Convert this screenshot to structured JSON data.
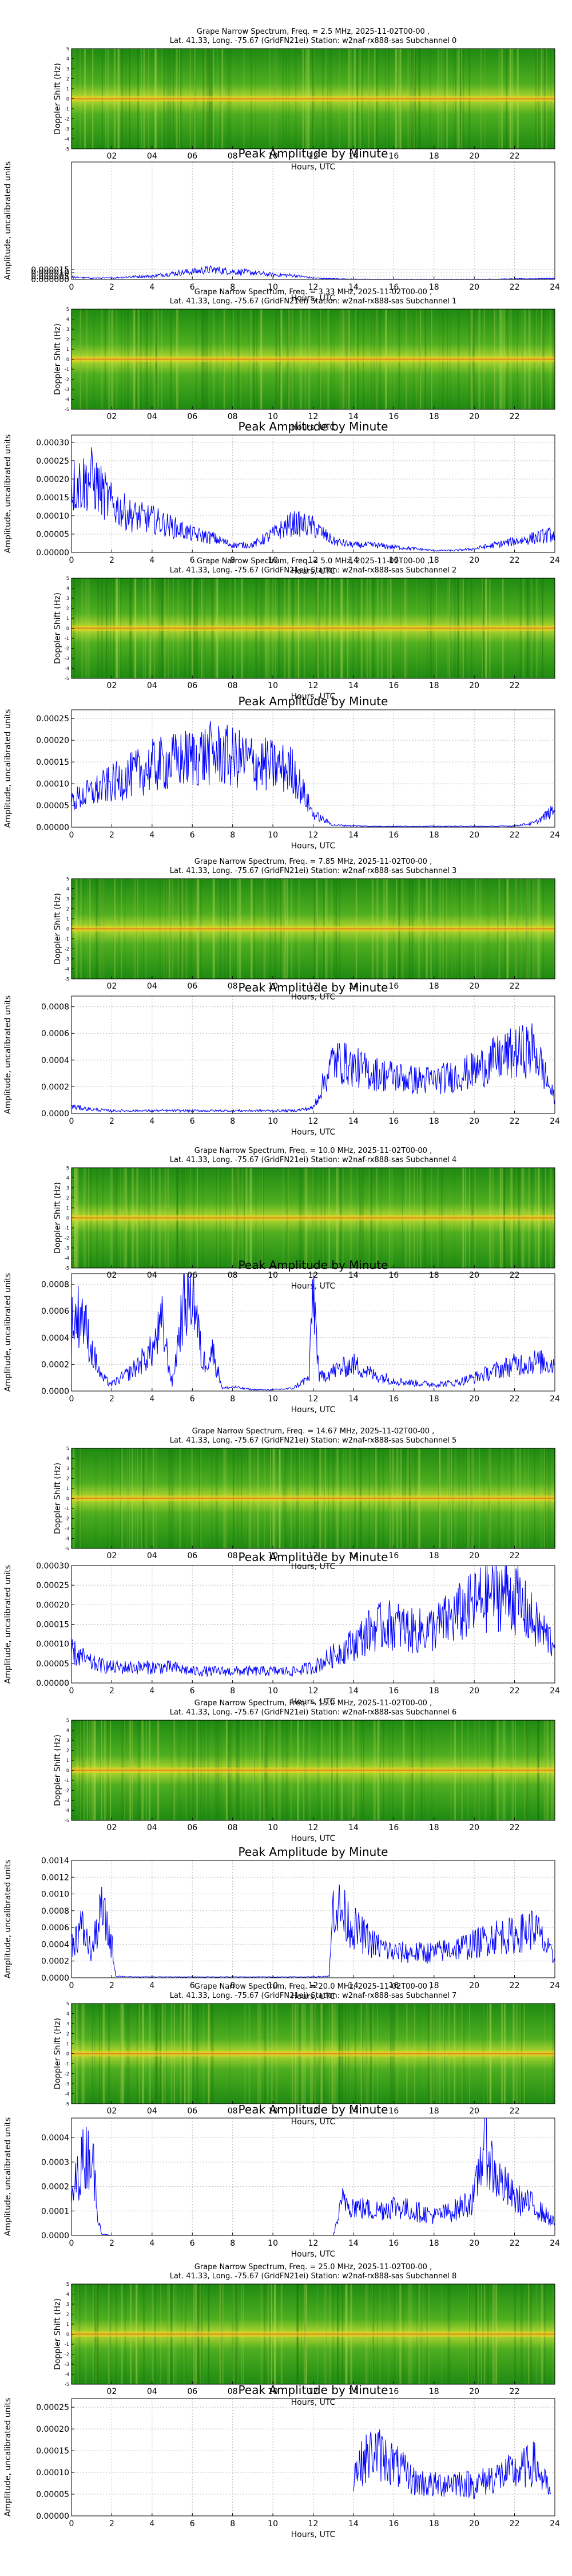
{
  "figure": {
    "x_ticks": [
      "02",
      "04",
      "06",
      "08",
      "10",
      "12",
      "14",
      "16",
      "18",
      "20",
      "22"
    ],
    "amp_x_ticks": [
      "0",
      "2",
      "4",
      "6",
      "8",
      "10",
      "12",
      "14",
      "16",
      "18",
      "20",
      "22",
      "24"
    ],
    "xlabel": "Hours, UTC",
    "spec_ylabel": "Doppler Shift (Hz)",
    "spec_yticks": [
      "-5",
      "-4",
      "-3",
      "-2",
      "-1",
      "0",
      "1",
      "2",
      "3",
      "4",
      "5"
    ],
    "amp_title": "Peak Amplitude by Minute",
    "amp_ylabel": "Amplitude, uncalibrated units"
  },
  "chart_data": [
    {
      "type": "heatmap",
      "subchannel": 0,
      "title_line1": "Grape Narrow Spectrum, Freq. = 2.5 MHz, 2025-11-02T00-00 ,",
      "title_line2": "Lat.  41.33, Long. -75.67 (GridFN21ei) Station: w2naf-rx888-sas Subchannel 0",
      "xlabel": "Hours, UTC",
      "ylabel": "Doppler Shift (Hz)",
      "xlim": [
        0,
        24
      ],
      "ylim": [
        -5,
        5
      ],
      "colormap": "green-yellow-red"
    },
    {
      "type": "line",
      "subchannel": 0,
      "title": "Peak Amplitude by Minute",
      "xlabel": "Hours, UTC",
      "ylabel": "Amplitude, uncalibrated units",
      "xlim": [
        0,
        24
      ],
      "ylim": [
        0,
        0.00018
      ],
      "yticks": [
        "0.000000",
        "0.000005",
        "0.000010",
        "0.000015"
      ],
      "ytick_values": [
        0,
        5e-06,
        1e-05,
        1.5e-05
      ],
      "x": [
        0,
        1,
        2,
        3,
        4,
        5,
        6,
        7,
        8,
        9,
        10,
        11,
        12,
        13,
        14,
        15,
        16,
        17,
        18,
        19,
        20,
        21,
        22,
        23,
        24
      ],
      "values": [
        3e-06,
        2e-06,
        2e-06,
        4e-06,
        5e-06,
        9e-06,
        1.2e-05,
        1.5e-05,
        1.2e-05,
        1e-05,
        7e-06,
        6e-06,
        2e-06,
        1e-06,
        5e-07,
        4e-07,
        4e-07,
        4e-07,
        4e-07,
        4e-07,
        4e-07,
        5e-07,
        8e-07,
        1e-06,
        1.5e-06
      ]
    },
    {
      "type": "heatmap",
      "subchannel": 1,
      "title_line1": "Grape Narrow Spectrum, Freq. = 3.33 MHz, 2025-11-02T00-00 ,",
      "title_line2": "Lat.  41.33, Long. -75.67 (GridFN21ei) Station: w2naf-rx888-sas Subchannel 1",
      "xlabel": "Hours, UTC",
      "ylabel": "Doppler Shift (Hz)",
      "xlim": [
        0,
        24
      ],
      "ylim": [
        -5,
        5
      ],
      "colormap": "green-yellow-red"
    },
    {
      "type": "line",
      "subchannel": 1,
      "title": "Peak Amplitude by Minute",
      "xlabel": "Hours, UTC",
      "ylabel": "Amplitude, uncalibrated units",
      "xlim": [
        0,
        24
      ],
      "ylim": [
        0,
        0.00032
      ],
      "yticks": [
        "0.00000",
        "0.00005",
        "0.00010",
        "0.00015",
        "0.00020",
        "0.00025",
        "0.00030"
      ],
      "ytick_values": [
        0,
        5e-05,
        0.0001,
        0.00015,
        0.0002,
        0.00025,
        0.0003
      ],
      "x": [
        0,
        1,
        2,
        3,
        4,
        5,
        6,
        7,
        8,
        9,
        10,
        11,
        12,
        13,
        14,
        15,
        16,
        17,
        18,
        19,
        20,
        21,
        22,
        23,
        24
      ],
      "values": [
        0.00018,
        0.0002,
        0.00013,
        0.0001,
        9e-05,
        7e-05,
        5e-05,
        4e-05,
        2e-05,
        2e-05,
        5e-05,
        8e-05,
        7e-05,
        3e-05,
        2e-05,
        2e-05,
        1.5e-05,
        1e-05,
        5e-06,
        5e-06,
        1e-05,
        2e-05,
        3e-05,
        4e-05,
        5e-05
      ]
    },
    {
      "type": "heatmap",
      "subchannel": 2,
      "title_line1": "Grape Narrow Spectrum, Freq. = 5.0 MHz, 2025-11-02T00-00 ,",
      "title_line2": "Lat.  41.33, Long. -75.67 (GridFN21ei) Station: w2naf-rx888-sas Subchannel 2",
      "xlabel": "Hours, UTC",
      "ylabel": "Doppler Shift (Hz)",
      "xlim": [
        0,
        24
      ],
      "ylim": [
        -5,
        5
      ],
      "colormap": "green-yellow-red"
    },
    {
      "type": "line",
      "subchannel": 2,
      "title": "Peak Amplitude by Minute",
      "xlabel": "Hours, UTC",
      "ylabel": "Amplitude, uncalibrated units",
      "xlim": [
        0,
        24
      ],
      "ylim": [
        0,
        0.00027
      ],
      "yticks": [
        "0.00000",
        "0.00005",
        "0.00010",
        "0.00015",
        "0.00020",
        "0.00025"
      ],
      "ytick_values": [
        0,
        5e-05,
        0.0001,
        0.00015,
        0.0002,
        0.00025
      ],
      "x": [
        0,
        1,
        2,
        3,
        4,
        5,
        6,
        7,
        8,
        9,
        10,
        11,
        12,
        13,
        14,
        15,
        16,
        17,
        18,
        19,
        20,
        21,
        22,
        23,
        24
      ],
      "values": [
        6e-05,
        8e-05,
        0.0001,
        0.00012,
        0.00014,
        0.00015,
        0.00016,
        0.00017,
        0.00016,
        0.00015,
        0.00014,
        0.00013,
        3e-05,
        5e-06,
        3e-06,
        2e-06,
        2e-06,
        2e-06,
        2e-06,
        2e-06,
        2e-06,
        2e-06,
        3e-06,
        1e-05,
        4e-05
      ]
    },
    {
      "type": "heatmap",
      "subchannel": 3,
      "title_line1": "Grape Narrow Spectrum, Freq. = 7.85 MHz, 2025-11-02T00-00 ,",
      "title_line2": "Lat.  41.33, Long. -75.67 (GridFN21ei) Station: w2naf-rx888-sas Subchannel 3",
      "xlabel": "Hours, UTC",
      "ylabel": "Doppler Shift (Hz)",
      "xlim": [
        0,
        24
      ],
      "ylim": [
        -5,
        5
      ],
      "colormap": "green-yellow-red"
    },
    {
      "type": "line",
      "subchannel": 3,
      "title": "Peak Amplitude by Minute",
      "xlabel": "Hours, UTC",
      "ylabel": "Amplitude, uncalibrated units",
      "xlim": [
        0,
        24
      ],
      "ylim": [
        0,
        0.00088
      ],
      "yticks": [
        "0.0000",
        "0.0002",
        "0.0004",
        "0.0006",
        "0.0008"
      ],
      "ytick_values": [
        0,
        0.0002,
        0.0004,
        0.0006,
        0.0008
      ],
      "x": [
        0,
        1,
        2,
        3,
        4,
        5,
        6,
        7,
        8,
        9,
        10,
        11,
        12,
        13,
        14,
        15,
        16,
        17,
        18,
        19,
        20,
        21,
        22,
        23,
        24
      ],
      "values": [
        5e-05,
        3e-05,
        2e-05,
        2e-05,
        2e-05,
        2e-05,
        2e-05,
        2e-05,
        2e-05,
        2e-05,
        2e-05,
        2e-05,
        4e-05,
        0.0004,
        0.00035,
        0.0003,
        0.00028,
        0.00025,
        0.00025,
        0.00028,
        0.00032,
        0.0004,
        0.00045,
        0.00048,
        0.0001
      ]
    },
    {
      "type": "heatmap",
      "subchannel": 4,
      "title_line1": "Grape Narrow Spectrum, Freq. = 10.0 MHz, 2025-11-02T00-00 ,",
      "title_line2": "Lat.  41.33, Long. -75.67 (GridFN21ei) Station: w2naf-rx888-sas Subchannel 4",
      "xlabel": "Hours, UTC",
      "ylabel": "Doppler Shift (Hz)",
      "xlim": [
        0,
        24
      ],
      "ylim": [
        -5,
        5
      ],
      "colormap": "green-yellow-red"
    },
    {
      "type": "line",
      "subchannel": 4,
      "title": "Peak Amplitude by Minute",
      "xlabel": "Hours, UTC",
      "ylabel": "Amplitude, uncalibrated units",
      "xlim": [
        0,
        24
      ],
      "ylim": [
        0,
        0.00088
      ],
      "yticks": [
        "0.0000",
        "0.0002",
        "0.0004",
        "0.0006",
        "0.0008"
      ],
      "ytick_values": [
        0,
        0.0002,
        0.0004,
        0.0006,
        0.0008
      ],
      "x": [
        0,
        0.5,
        1,
        1.5,
        2,
        3,
        4,
        4.5,
        5,
        5.5,
        6,
        6.5,
        7,
        7.5,
        8,
        9,
        10,
        11,
        11.8,
        12,
        12.3,
        13,
        14,
        15,
        16,
        17,
        18,
        19,
        20,
        21,
        22,
        23,
        24
      ],
      "values": [
        0.0005,
        0.0006,
        0.0003,
        0.0001,
        5e-05,
        0.00015,
        0.0003,
        0.0005,
        5e-05,
        0.0006,
        0.0008,
        0.0002,
        0.0003,
        2e-05,
        3e-05,
        1e-05,
        1e-05,
        2e-05,
        0.0001,
        0.0008,
        0.0001,
        0.00015,
        0.0002,
        0.00012,
        8e-05,
        6e-05,
        5e-05,
        6e-05,
        0.0001,
        0.00015,
        0.0002,
        0.00022,
        0.0002
      ]
    },
    {
      "type": "heatmap",
      "subchannel": 5,
      "title_line1": "Grape Narrow Spectrum, Freq. = 14.67 MHz, 2025-11-02T00-00 ,",
      "title_line2": "Lat.  41.33, Long. -75.67 (GridFN21ei) Station: w2naf-rx888-sas Subchannel 5",
      "xlabel": "Hours, UTC",
      "ylabel": "Doppler Shift (Hz)",
      "xlim": [
        0,
        24
      ],
      "ylim": [
        -5,
        5
      ],
      "colormap": "green-yellow-red"
    },
    {
      "type": "line",
      "subchannel": 5,
      "title": "Peak Amplitude by Minute",
      "xlabel": "Hours, UTC",
      "ylabel": "Amplitude, uncalibrated units",
      "xlim": [
        0,
        24
      ],
      "ylim": [
        0,
        0.0003
      ],
      "yticks": [
        "0.00000",
        "0.00005",
        "0.00010",
        "0.00015",
        "0.00020",
        "0.00025",
        "0.00030"
      ],
      "ytick_values": [
        0,
        5e-05,
        0.0001,
        0.00015,
        0.0002,
        0.00025,
        0.0003
      ],
      "x": [
        0,
        1,
        2,
        3,
        4,
        5,
        6,
        7,
        8,
        9,
        10,
        11,
        12,
        13,
        14,
        15,
        16,
        17,
        18,
        19,
        20,
        21,
        22,
        23,
        24
      ],
      "values": [
        8e-05,
        5e-05,
        4e-05,
        4e-05,
        4e-05,
        4e-05,
        3e-05,
        3e-05,
        3e-05,
        3e-05,
        3e-05,
        3e-05,
        4e-05,
        7e-05,
        0.0001,
        0.00014,
        0.00015,
        0.00013,
        0.00014,
        0.00017,
        0.0002,
        0.00024,
        0.00022,
        0.00015,
        0.0001
      ]
    },
    {
      "type": "heatmap",
      "subchannel": 6,
      "title_line1": "Grape Narrow Spectrum, Freq. = 15.0 MHz, 2025-11-02T00-00 ,",
      "title_line2": "Lat.  41.33, Long. -75.67 (GridFN21ei) Station: w2naf-rx888-sas Subchannel 6",
      "xlabel": "Hours, UTC",
      "ylabel": "Doppler Shift (Hz)",
      "xlim": [
        0,
        24
      ],
      "ylim": [
        -5,
        5
      ],
      "colormap": "green-yellow-red"
    },
    {
      "type": "line",
      "subchannel": 6,
      "title": "Peak Amplitude by Minute",
      "xlabel": "Hours, UTC",
      "ylabel": "Amplitude, uncalibrated units",
      "xlim": [
        0,
        24
      ],
      "ylim": [
        0,
        0.0014
      ],
      "yticks": [
        "0.0000",
        "0.0002",
        "0.0004",
        "0.0006",
        "0.0008",
        "0.0010",
        "0.0012",
        "0.0014"
      ],
      "ytick_values": [
        0,
        0.0002,
        0.0004,
        0.0006,
        0.0008,
        0.001,
        0.0012,
        0.0014
      ],
      "x": [
        0,
        0.5,
        1,
        1.5,
        2,
        2.2,
        3,
        4,
        5,
        6,
        7,
        8,
        9,
        10,
        11,
        12,
        12.8,
        13,
        14,
        15,
        16,
        17,
        18,
        19,
        20,
        21,
        22,
        23,
        24
      ],
      "values": [
        0.0004,
        0.0006,
        0.0003,
        0.0008,
        0.0004,
        2e-05,
        1e-05,
        1e-05,
        1e-05,
        1e-05,
        1e-05,
        1e-05,
        1e-05,
        1e-05,
        1e-05,
        1e-05,
        2e-05,
        0.0009,
        0.0006,
        0.0004,
        0.0003,
        0.0003,
        0.0003,
        0.00035,
        0.0004,
        0.0005,
        0.0005,
        0.0006,
        0.0002
      ]
    },
    {
      "type": "heatmap",
      "subchannel": 7,
      "title_line1": "Grape Narrow Spectrum, Freq. = 20.0 MHz, 2025-11-02T00-00 ,",
      "title_line2": "Lat.  41.33, Long. -75.67 (GridFN21ei) Station: w2naf-rx888-sas Subchannel 7",
      "xlabel": "Hours, UTC",
      "ylabel": "Doppler Shift (Hz)",
      "xlim": [
        0,
        24
      ],
      "ylim": [
        -5,
        5
      ],
      "colormap": "green-yellow-red"
    },
    {
      "type": "line",
      "subchannel": 7,
      "title": "Peak Amplitude by Minute",
      "xlabel": "Hours, UTC",
      "ylabel": "Amplitude, uncalibrated units",
      "xlim": [
        0,
        24
      ],
      "ylim": [
        0,
        0.00048
      ],
      "yticks": [
        "0.0000",
        "0.0001",
        "0.0002",
        "0.0003",
        "0.0004"
      ],
      "ytick_values": [
        0,
        0.0001,
        0.0002,
        0.0003,
        0.0004
      ],
      "x": [
        0,
        0.5,
        1,
        1.3,
        1.5,
        2,
        3,
        4,
        5,
        6,
        7,
        8,
        9,
        10,
        11,
        12,
        13,
        13.5,
        14,
        15,
        16,
        17,
        18,
        19,
        20,
        20.5,
        21,
        22,
        23,
        24
      ],
      "values": [
        0.00015,
        0.0003,
        0.00035,
        0.0001,
        5e-06,
        0.0,
        0.0,
        0.0,
        0.0,
        0.0,
        0.0,
        0.0,
        0.0,
        0.0,
        0.0,
        0.0,
        0.0,
        0.00015,
        0.00012,
        0.0001,
        0.00012,
        0.0001,
        8e-05,
        0.0001,
        0.00015,
        0.0004,
        0.00025,
        0.00015,
        0.00012,
        5e-05
      ]
    },
    {
      "type": "heatmap",
      "subchannel": 8,
      "title_line1": "Grape Narrow Spectrum, Freq. = 25.0 MHz, 2025-11-02T00-00 ,",
      "title_line2": "Lat.  41.33, Long. -75.67 (GridFN21ei) Station: w2naf-rx888-sas Subchannel 8",
      "xlabel": "Hours, UTC",
      "ylabel": "Doppler Shift (Hz)",
      "xlim": [
        0,
        24
      ],
      "ylim": [
        -5,
        5
      ],
      "colormap": "green-yellow-red"
    },
    {
      "type": "line",
      "subchannel": 8,
      "title": "Peak Amplitude by Minute",
      "xlabel": "Hours, UTC",
      "ylabel": "Amplitude, uncalibrated units",
      "xlim": [
        0,
        24
      ],
      "ylim": [
        0,
        0.00027
      ],
      "yticks": [
        "0.00000",
        "0.00005",
        "0.00010",
        "0.00015",
        "0.00020",
        "0.00025"
      ],
      "ytick_values": [
        0,
        5e-05,
        0.0001,
        0.00015,
        0.0002,
        0.00025
      ],
      "x": [
        14,
        15,
        16,
        17,
        18,
        19,
        20,
        21,
        22,
        23,
        23.8
      ],
      "values": [
        0.0001,
        0.00015,
        0.00012,
        8e-05,
        7e-05,
        8e-05,
        7e-05,
        9e-05,
        0.0001,
        0.00012,
        5e-05
      ]
    }
  ]
}
